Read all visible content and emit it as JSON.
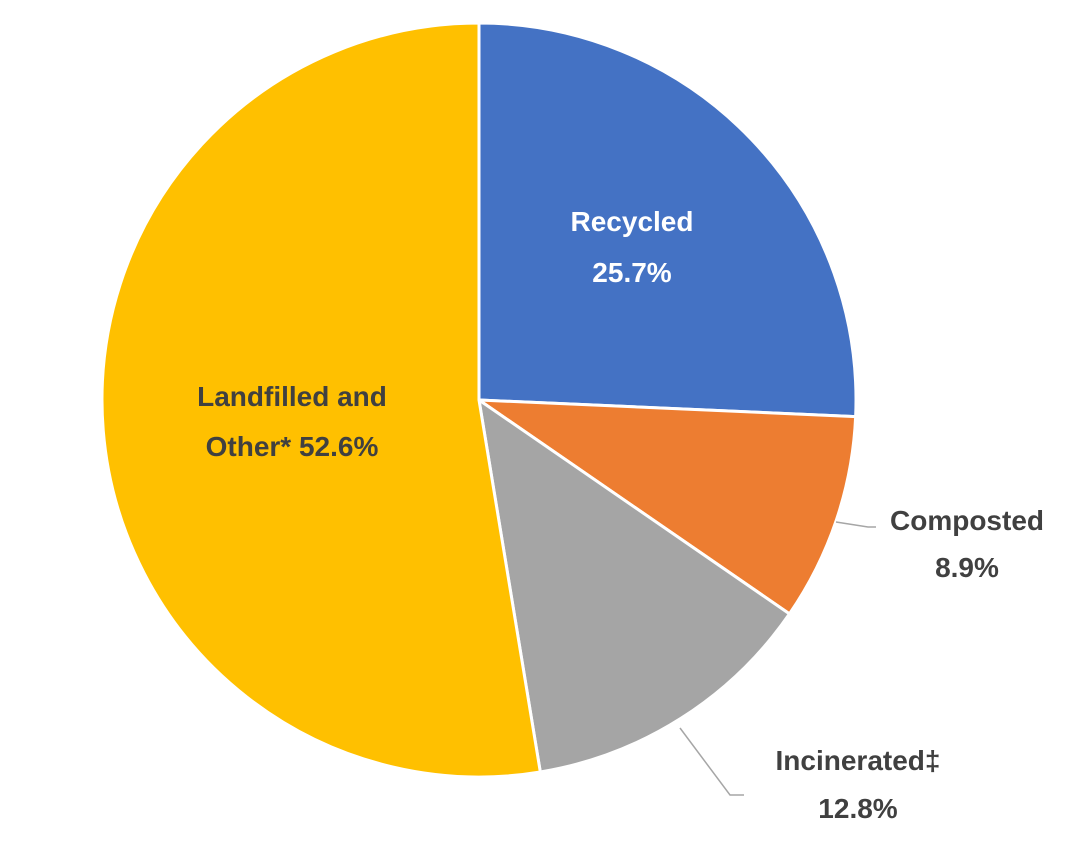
{
  "chart_data": {
    "type": "pie",
    "start_angle_deg": 0,
    "direction": "clockwise",
    "slices": [
      {
        "label_line1": "Recycled",
        "label_line2": "25.7%",
        "value": 25.7,
        "color": "#4472C4",
        "label_color": "#FFFFFF"
      },
      {
        "label_line1": "Composted",
        "label_line2": "8.9%",
        "value": 8.9,
        "color": "#ED7D31",
        "label_color": "#404040"
      },
      {
        "label_line1": "Incinerated‡",
        "label_line2": "12.8%",
        "value": 12.8,
        "color": "#A5A5A5",
        "label_color": "#404040"
      },
      {
        "label_line1": "Landfilled and",
        "label_line2": "Other* 52.6%",
        "value": 52.6,
        "color": "#FFC000",
        "label_color": "#404040"
      }
    ]
  }
}
